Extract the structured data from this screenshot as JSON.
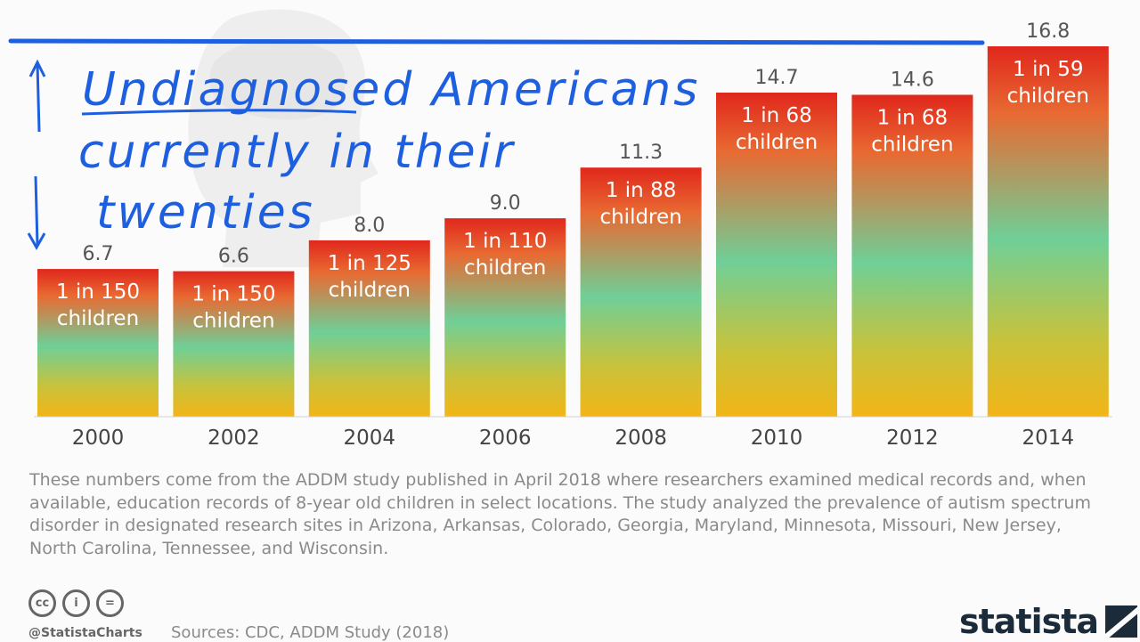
{
  "chart_data": {
    "type": "bar",
    "categories": [
      "2000",
      "2002",
      "2004",
      "2006",
      "2008",
      "2010",
      "2012",
      "2014"
    ],
    "values": [
      6.7,
      6.6,
      8.0,
      9.0,
      11.3,
      14.7,
      14.6,
      16.8
    ],
    "value_labels": [
      "6.7",
      "6.6",
      "8.0",
      "9.0",
      "11.3",
      "14.7",
      "14.6",
      "16.8"
    ],
    "bar_labels": [
      [
        "1 in 150",
        "children"
      ],
      [
        "1 in 150",
        "children"
      ],
      [
        "1 in 125",
        "children"
      ],
      [
        "1 in 110",
        "children"
      ],
      [
        "1 in 88",
        "children"
      ],
      [
        "1 in 68",
        "children"
      ],
      [
        "1 in 68",
        "children"
      ],
      [
        "1 in 59",
        "children"
      ]
    ],
    "ylim": [
      0,
      16.8
    ],
    "grid": false,
    "legend": "none",
    "colors": {
      "gradient_top": "#e0271c",
      "gradient_upper": "#e86a32",
      "gradient_mid": "#6fcf97",
      "gradient_lower": "#c9c23a",
      "gradient_bottom": "#f2b517"
    }
  },
  "annotation": {
    "lines": [
      "Undiagnosed Americans",
      "currently in their",
      "twenties"
    ],
    "color": "#1e5fe0"
  },
  "footer": {
    "note": "These numbers come from the ADDM study published in April 2018 where researchers examined medical records and, when available, education records of 8-year old children in select locations. The study analyzed the prevalence of autism spectrum disorder in designated research sites in Arizona, Arkansas, Colorado, Georgia, Maryland, Minnesota, Missouri, New Jersey, North Carolina, Tennessee, and Wisconsin.",
    "cc_icons": [
      "cc",
      "i",
      "="
    ],
    "handle": "@StatistaCharts",
    "sources": "Sources: CDC, ADDM Study (2018)",
    "brand": "statista"
  }
}
